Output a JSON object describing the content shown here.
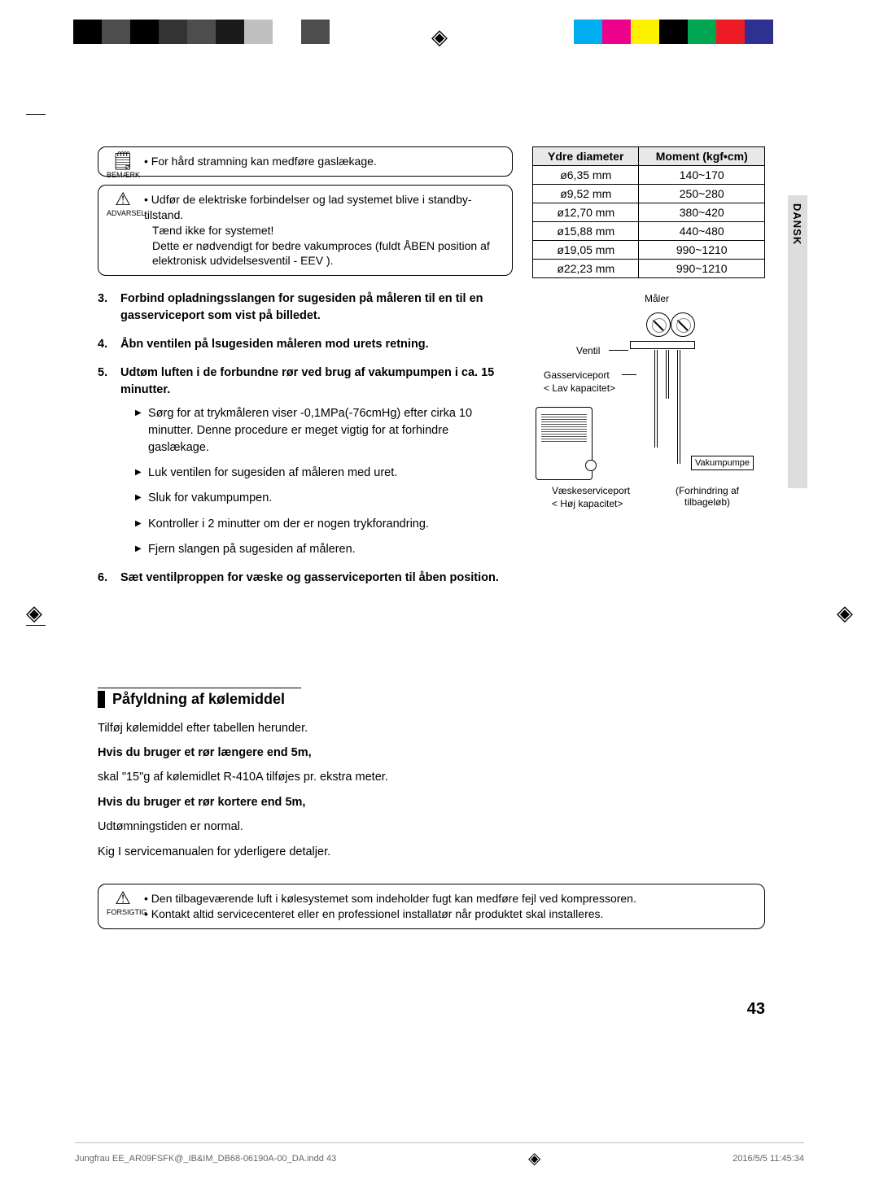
{
  "registration": {
    "left_colors": [
      "#000000",
      "#4d4d4d",
      "#000000",
      "#333333",
      "#4d4d4d",
      "#1a1a1a",
      "#c0c0c0",
      "#ffffff",
      "#4d4d4d"
    ],
    "right_colors": [
      "#00aeef",
      "#ec008c",
      "#fff200",
      "#000000",
      "#00a651",
      "#ed1c24",
      "#2e3192",
      "#ffffff"
    ]
  },
  "language_tab": "DANSK",
  "callouts": {
    "note": {
      "icon_label": "BEMÆRK",
      "text": "For hård stramning kan medføre gaslækage."
    },
    "warning": {
      "icon_label": "ADVARSEL",
      "line1": "Udfør de elektriske forbindelser og lad systemet blive i standby-tilstand.",
      "line2": "Tænd ikke for systemet!",
      "line3": "Dette er nødvendigt for bedre vakumproces (fuldt ÅBEN position af elektronisk udvidelsesventil - EEV )."
    },
    "caution": {
      "icon_label": "FORSIGTIG",
      "line1": "Den tilbageværende luft i kølesystemet som indeholder fugt kan medføre fejl ved kompressoren.",
      "line2": "Kontakt altid servicecenteret eller en professionel installatør når produktet skal installeres."
    }
  },
  "torque_table": {
    "headers": [
      "Ydre diameter",
      "Moment (kgf•cm)"
    ],
    "rows": [
      [
        "ø6,35 mm",
        "140~170"
      ],
      [
        "ø9,52 mm",
        "250~280"
      ],
      [
        "ø12,70 mm",
        "380~420"
      ],
      [
        "ø15,88 mm",
        "440~480"
      ],
      [
        "ø19,05 mm",
        "990~1210"
      ],
      [
        "ø22,23 mm",
        "990~1210"
      ]
    ],
    "header_bg": "#e8e8e8"
  },
  "steps": {
    "s3": "Forbind opladningsslangen for sugesiden på måleren til en  til en gasserviceport som vist på billedet.",
    "s4": "Åbn ventilen på lsugesiden måleren mod urets retning.",
    "s5": "Udtøm luften i de forbundne rør ved brug af vakumpumpen i ca. 15 minutter.",
    "s5_sub": [
      "Sørg for at trykmåleren viser -0,1MPa(-76cmHg) efter cirka 10 minutter. Denne procedure er meget vigtig for at forhindre gaslækage.",
      "Luk ventilen for sugesiden af måleren med uret.",
      "Sluk for vakumpumpen.",
      "Kontroller i 2 minutter om der er nogen trykforandring.",
      "Fjern slangen på sugesiden af måleren."
    ],
    "s6": "Sæt ventilproppen for væske og gasserviceporten til åben position."
  },
  "diagram": {
    "maler": "Måler",
    "ventil": "Ventil",
    "gasport": "Gasserviceport",
    "lav": "< Lav kapacitet>",
    "vaeske": "Væskeserviceport",
    "hoj": "< Høj kapacitet>",
    "pump": "Vakumpumpe",
    "forhind": "(Forhindring af tilbageløb)"
  },
  "section": {
    "title": "Påfyldning af kølemiddel",
    "intro": "Tilføj kølemiddel efter tabellen herunder.",
    "p1_bold": "Hvis du bruger et rør længere end 5m,",
    "p1": "skal \"15\"g af kølemidlet R-410A tilføjes pr. ekstra meter.",
    "p2_bold": "Hvis du bruger et rør kortere end 5m,",
    "p2": "Udtømningstiden er normal.",
    "p3": "Kig I servicemanualen for yderligere detaljer."
  },
  "page_number": "43",
  "footer": {
    "file": "Jungfrau EE_AR09FSFK@_IB&IM_DB68-06190A-00_DA.indd   43",
    "timestamp": "2016/5/5   11:45:34"
  }
}
